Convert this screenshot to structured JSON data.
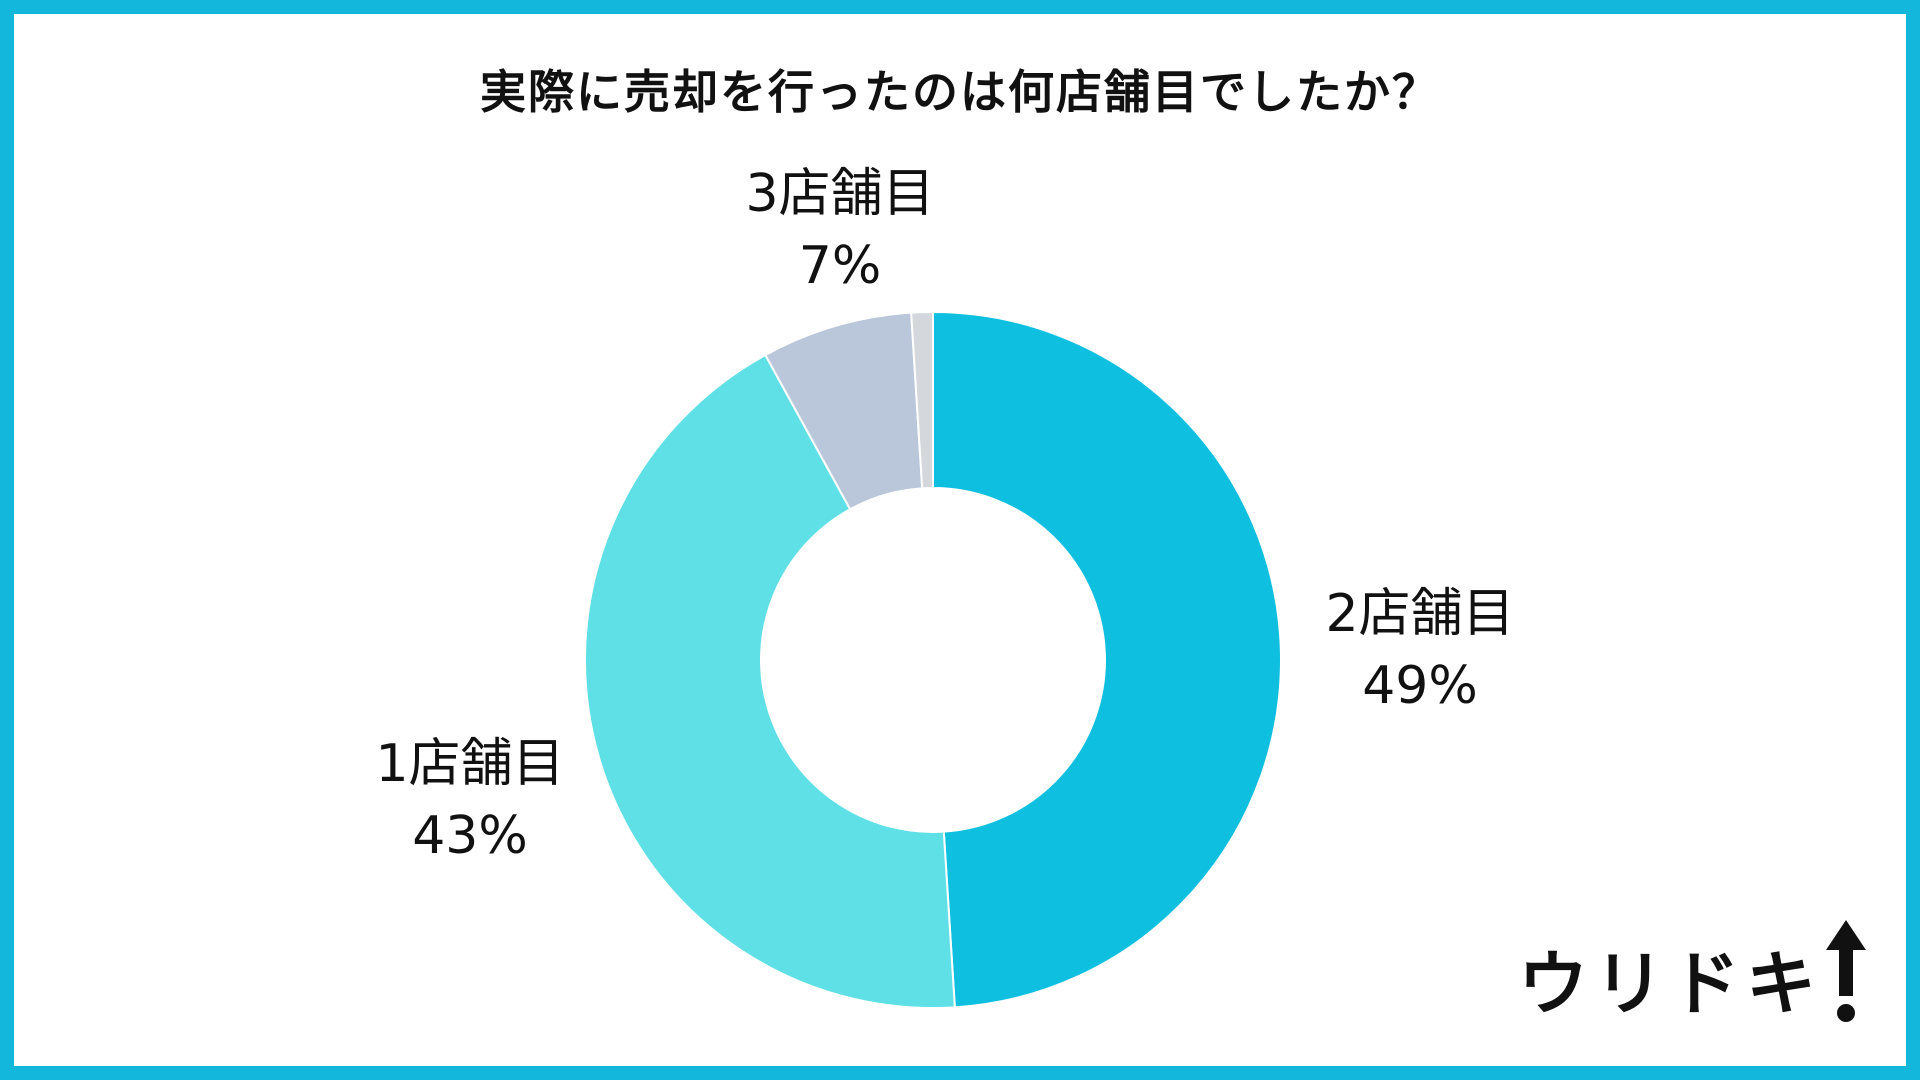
{
  "chart_data": {
    "type": "pie",
    "title": "実際に売却を行ったのは何店舗目でしたか？",
    "slices": [
      {
        "label": "2店舗目",
        "value": 49,
        "value_label": "49%",
        "color": "#0fbfe0"
      },
      {
        "label": "1店舗目",
        "value": 43,
        "value_label": "43%",
        "color": "#5fe0e6"
      },
      {
        "label": "3店舗目",
        "value": 7,
        "value_label": "7%",
        "color": "#bac7db"
      },
      {
        "label": "",
        "value": 1,
        "value_label": "",
        "color": "#d4d8dc"
      }
    ],
    "start_angle": "12 o'clock",
    "direction": "clockwise",
    "donut": true
  },
  "colors": {
    "frame": "#13b7dc",
    "background": "#ffffff",
    "text": "#111111"
  },
  "logo": {
    "text": "ウリドキ",
    "icon": "up-arrow-icon"
  }
}
